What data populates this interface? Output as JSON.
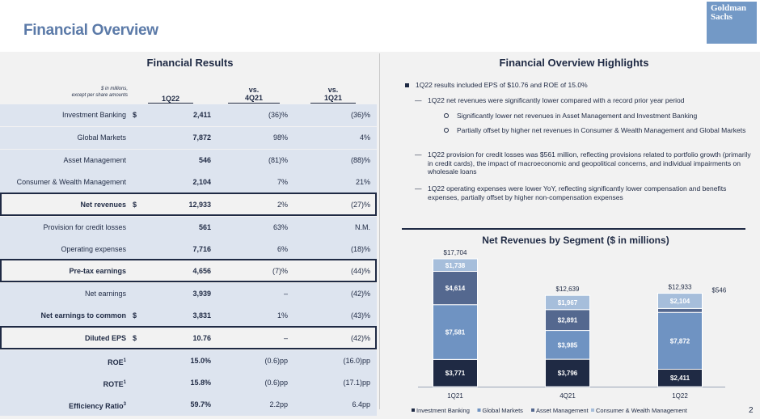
{
  "header": {
    "title": "Financial Overview",
    "logo_line1": "Goldman",
    "logo_line2": "Sachs",
    "page_number": "2"
  },
  "results": {
    "title": "Financial Results",
    "note_line1": "$ in millions,",
    "note_line2": "except per share amounts",
    "col1": "1Q22",
    "col2_line1": "vs.",
    "col2_line2": "4Q21",
    "col3_line1": "vs.",
    "col3_line2": "1Q21",
    "rows": [
      {
        "label": "Investment Banking",
        "dollar": "$",
        "value": "2,411",
        "vs4q21": "(36)%",
        "vs1q21": "(36)%"
      },
      {
        "label": "Global Markets",
        "dollar": "",
        "value": "7,872",
        "vs4q21": "98%",
        "vs1q21": "4%"
      },
      {
        "label": "Asset Management",
        "dollar": "",
        "value": "546",
        "vs4q21": "(81)%",
        "vs1q21": "(88)%"
      },
      {
        "label": "Consumer & Wealth Management",
        "dollar": "",
        "value": "2,104",
        "vs4q21": "7%",
        "vs1q21": "21%"
      },
      {
        "label": "Net revenues",
        "dollar": "$",
        "value": "12,933",
        "vs4q21": "2%",
        "vs1q21": "(27)%"
      },
      {
        "label": "Provision for credit losses",
        "dollar": "",
        "value": "561",
        "vs4q21": "63%",
        "vs1q21": "N.M."
      },
      {
        "label": "Operating expenses",
        "dollar": "",
        "value": "7,716",
        "vs4q21": "6%",
        "vs1q21": "(18)%"
      },
      {
        "label": "Pre-tax earnings",
        "dollar": "",
        "value": "4,656",
        "vs4q21": "(7)%",
        "vs1q21": "(44)%"
      },
      {
        "label": "Net earnings",
        "dollar": "",
        "value": "3,939",
        "vs4q21": "–",
        "vs1q21": "(42)%"
      },
      {
        "label": "Net earnings to common",
        "dollar": "$",
        "value": "3,831",
        "vs4q21": "1%",
        "vs1q21": "(43)%"
      },
      {
        "label": "Diluted EPS",
        "dollar": "$",
        "value": "10.76",
        "vs4q21": "–",
        "vs1q21": "(42)%"
      },
      {
        "label": "ROE",
        "sup": "1",
        "dollar": "",
        "value": "15.0%",
        "vs4q21": "(0.6)pp",
        "vs1q21": "(16.0)pp"
      },
      {
        "label": "ROTE",
        "sup": "1",
        "dollar": "",
        "value": "15.8%",
        "vs4q21": "(0.6)pp",
        "vs1q21": "(17.1)pp"
      },
      {
        "label": "Efficiency Ratio",
        "sup": "3",
        "dollar": "",
        "value": "59.7%",
        "vs4q21": "2.2pp",
        "vs1q21": "6.4pp"
      }
    ]
  },
  "highlights": {
    "title": "Financial Overview Highlights",
    "b1": "1Q22 results included EPS of $10.76 and ROE of 15.0%",
    "b1_1": "1Q22 net revenues were significantly lower compared with a record prior year period",
    "b1_1_1": "Significantly lower net revenues in Asset Management and Investment Banking",
    "b1_1_2": "Partially offset by higher net revenues in Consumer & Wealth Management and Global Markets",
    "b1_2": "1Q22 provision for credit losses was $561 million, reflecting provisions related to portfolio growth (primarily in credit cards), the impact of macroeconomic and geopolitical concerns, and individual impairments on wholesale loans",
    "b1_3": "1Q22 operating expenses were lower YoY, reflecting significantly lower compensation and benefits expenses, partially offset by higher non-compensation expenses",
    "dash": "—"
  },
  "chart_data": {
    "type": "bar",
    "stacked": true,
    "title": "Net Revenues by Segment ($ in millions)",
    "categories": [
      "1Q21",
      "4Q21",
      "1Q22"
    ],
    "series": [
      {
        "name": "Investment Banking",
        "values": [
          3771,
          3796,
          2411
        ],
        "labels": [
          "$3,771",
          "$3,796",
          "$2,411"
        ],
        "color": "#1f2a44"
      },
      {
        "name": "Global Markets",
        "values": [
          7581,
          3985,
          7872
        ],
        "labels": [
          "$7,581",
          "$3,985",
          "$7,872"
        ],
        "color": "#6f93c2"
      },
      {
        "name": "Asset Management",
        "values": [
          4614,
          2891,
          546
        ],
        "labels": [
          "$4,614",
          "$2,891",
          "$546"
        ],
        "color": "#54688f"
      },
      {
        "name": "Consumer & Wealth Management",
        "values": [
          1738,
          1967,
          2104
        ],
        "labels": [
          "$1,738",
          "$1,967",
          "$2,104"
        ],
        "color": "#a6bedb"
      }
    ],
    "totals": [
      "$17,704",
      "$12,639",
      "$12,933"
    ],
    "legend_position": "bottom"
  }
}
